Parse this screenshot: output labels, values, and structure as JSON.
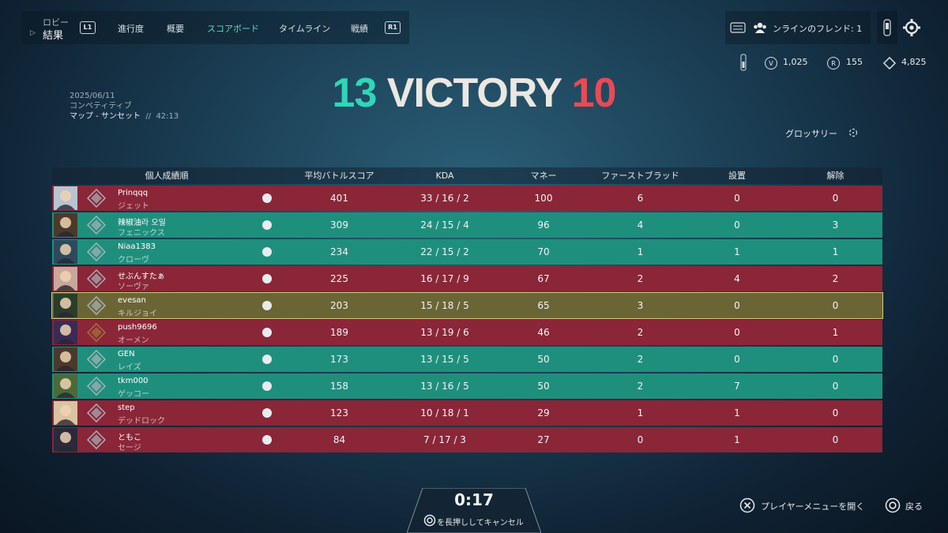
{
  "nav": {
    "back_small": "ロビー",
    "back_big": "結果",
    "l1": "L1",
    "r1": "R1",
    "tabs": [
      "進行度",
      "概要",
      "スコアボード",
      "タイムライン",
      "戦績"
    ],
    "active_tab": "スコアボード",
    "friends_label": "ンラインのフレンド: 1"
  },
  "currencies": [
    {
      "icon": "valorant-points-icon",
      "value": "1,025"
    },
    {
      "icon": "radianite-icon",
      "symbol": "R",
      "value": "155"
    },
    {
      "icon": "kingdom-credits-icon",
      "value": "4,825"
    }
  ],
  "match": {
    "team_score": "13",
    "result": "VICTORY",
    "enemy_score": "10",
    "date": "2025/06/11",
    "mode": "コンペティティブ",
    "map": "マップ - サンセット",
    "separator": "//",
    "duration": "42:13"
  },
  "glossary": "グロッサリー",
  "headers": [
    "個人成績順",
    "平均バトルスコア",
    "KDA",
    "マネー",
    "ファーストブラッド",
    "設置",
    "解除"
  ],
  "players": [
    {
      "team": "red",
      "name": "Prinqqq",
      "agent": "ジェット",
      "acs": "401",
      "kda": "33 / 16 / 2",
      "money": "100",
      "fb": "6",
      "plant": "0",
      "defuse": "0"
    },
    {
      "team": "green",
      "name": "辣椒油라 오일",
      "agent": "フェニックス",
      "acs": "309",
      "kda": "24 / 15 / 4",
      "money": "96",
      "fb": "4",
      "plant": "0",
      "defuse": "3"
    },
    {
      "team": "green",
      "name": "Niaa1383",
      "agent": "クローヴ",
      "acs": "234",
      "kda": "22 / 15 / 2",
      "money": "70",
      "fb": "1",
      "plant": "1",
      "defuse": "1"
    },
    {
      "team": "red",
      "name": "せぶんすたぁ",
      "agent": "ソーヴァ",
      "acs": "225",
      "kda": "16 / 17 / 9",
      "money": "67",
      "fb": "2",
      "plant": "4",
      "defuse": "2"
    },
    {
      "team": "self",
      "name": "evesan",
      "agent": "キルジョイ",
      "acs": "203",
      "kda": "15 / 18 / 5",
      "money": "65",
      "fb": "3",
      "plant": "0",
      "defuse": "0"
    },
    {
      "team": "red",
      "name": "push9696",
      "agent": "オーメン",
      "acs": "189",
      "kda": "13 / 19 / 6",
      "money": "46",
      "fb": "2",
      "plant": "0",
      "defuse": "1"
    },
    {
      "team": "green",
      "name": "GEN",
      "agent": "レイズ",
      "acs": "173",
      "kda": "13 / 15 / 5",
      "money": "50",
      "fb": "2",
      "plant": "0",
      "defuse": "0"
    },
    {
      "team": "green",
      "name": "tkm000",
      "agent": "ゲッコー",
      "acs": "158",
      "kda": "13 / 16 / 5",
      "money": "50",
      "fb": "2",
      "plant": "7",
      "defuse": "0"
    },
    {
      "team": "red",
      "name": "step",
      "agent": "デッドロック",
      "acs": "123",
      "kda": "10 / 18 / 1",
      "money": "29",
      "fb": "1",
      "plant": "1",
      "defuse": "0"
    },
    {
      "team": "red",
      "name": "ともこ",
      "agent": "セージ",
      "acs": "84",
      "kda": "7 / 17 / 3",
      "money": "27",
      "fb": "0",
      "plant": "1",
      "defuse": "0"
    }
  ],
  "footer": {
    "timer": "0:17",
    "hold_cancel": "を長押ししてキャンセル",
    "player_menu": "プレイヤーメニューを開く",
    "back": "戻る"
  },
  "colors": {
    "team_green": "#1f8f7d",
    "team_red": "#8a2638",
    "self_row": "#6b6536",
    "win": "#2fd6b9",
    "loss": "#ea4a55"
  }
}
